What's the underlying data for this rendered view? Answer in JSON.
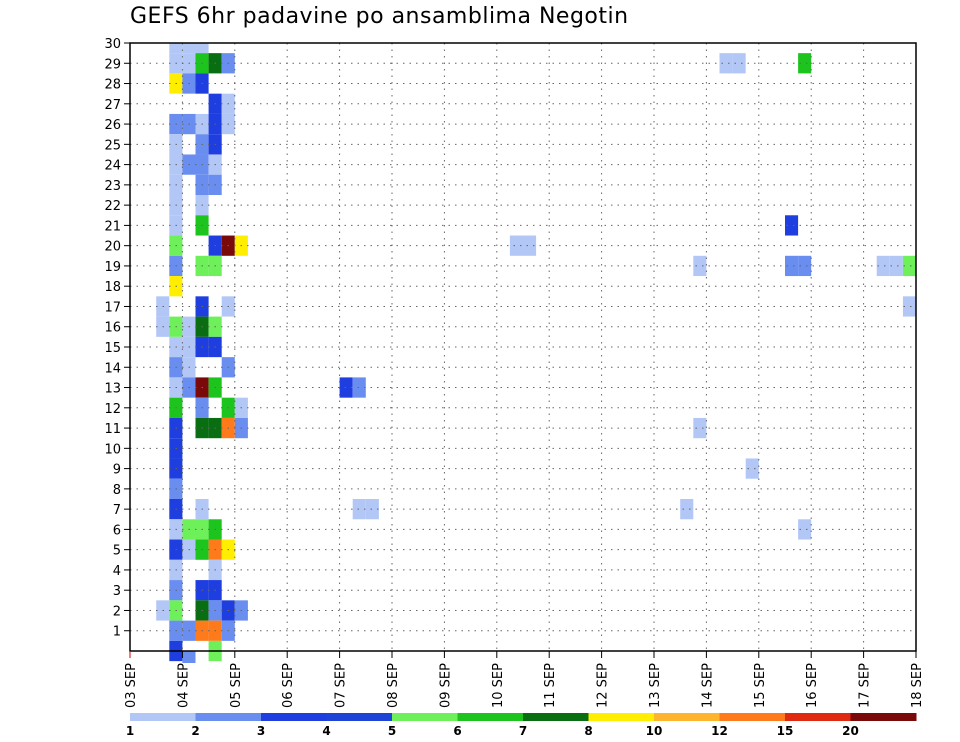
{
  "title": "GEFS 6hr padavine po ansamblima Negotin",
  "chart_data": {
    "type": "heatmap",
    "title": "GEFS 6hr padavine po ansamblima Negotin",
    "xlabel": "",
    "ylabel": "",
    "x_ticks": [
      "03 SEP",
      "04 SEP",
      "05 SEP",
      "06 SEP",
      "07 SEP",
      "08 SEP",
      "09 SEP",
      "10 SEP",
      "11 SEP",
      "12 SEP",
      "13 SEP",
      "14 SEP",
      "15 SEP",
      "16 SEP",
      "17 SEP",
      "18 SEP"
    ],
    "y_ticks": [
      1,
      2,
      3,
      4,
      5,
      6,
      7,
      8,
      9,
      10,
      11,
      12,
      13,
      14,
      15,
      16,
      17,
      18,
      19,
      20,
      21,
      22,
      23,
      24,
      25,
      26,
      27,
      28,
      29,
      30
    ],
    "xlim_days": [
      3,
      18
    ],
    "ylim": [
      0,
      30
    ],
    "step_hours": 6,
    "grid": true,
    "colorbar": {
      "labels": [
        "1",
        "2",
        "3",
        "4",
        "5",
        "6",
        "7",
        "8",
        "10",
        "12",
        "15",
        "20"
      ],
      "colors": [
        "#b3c7f7",
        "#6a8ef0",
        "#1f3ee0",
        "#1d44d6",
        "#6ef05a",
        "#1ec41e",
        "#096e12",
        "#ffee00",
        "#ffb42e",
        "#ff7a1a",
        "#e02a10",
        "#7a0a0a"
      ]
    },
    "cells": [
      [
        3.75,
        30,
        1
      ],
      [
        4.0,
        30,
        1
      ],
      [
        4.25,
        30,
        1
      ],
      [
        3.75,
        29,
        1
      ],
      [
        4.0,
        29,
        1
      ],
      [
        4.25,
        29,
        6
      ],
      [
        4.5,
        29,
        7
      ],
      [
        4.75,
        29,
        2
      ],
      [
        3.75,
        28,
        8
      ],
      [
        4.0,
        28,
        2
      ],
      [
        4.25,
        28,
        3
      ],
      [
        4.5,
        27,
        3
      ],
      [
        4.75,
        27,
        1
      ],
      [
        3.75,
        26,
        2
      ],
      [
        4.0,
        26,
        2
      ],
      [
        4.25,
        26,
        1
      ],
      [
        4.5,
        26,
        3
      ],
      [
        4.75,
        26,
        1
      ],
      [
        3.75,
        25,
        1
      ],
      [
        4.25,
        25,
        2
      ],
      [
        4.5,
        25,
        3
      ],
      [
        3.75,
        24,
        1
      ],
      [
        4.0,
        24,
        2
      ],
      [
        4.25,
        24,
        2
      ],
      [
        4.5,
        24,
        1
      ],
      [
        3.75,
        23,
        1
      ],
      [
        4.25,
        23,
        2
      ],
      [
        4.5,
        23,
        2
      ],
      [
        3.75,
        22,
        1
      ],
      [
        4.25,
        22,
        1
      ],
      [
        3.75,
        21,
        1
      ],
      [
        4.25,
        21,
        6
      ],
      [
        3.75,
        20,
        5
      ],
      [
        4.5,
        20,
        3
      ],
      [
        4.75,
        20,
        20
      ],
      [
        5.0,
        20,
        8
      ],
      [
        3.75,
        19,
        2
      ],
      [
        4.25,
        19,
        5
      ],
      [
        4.5,
        19,
        5
      ],
      [
        3.75,
        18,
        8
      ],
      [
        3.5,
        17,
        1
      ],
      [
        4.25,
        17,
        3
      ],
      [
        4.75,
        17,
        1
      ],
      [
        3.5,
        16,
        1
      ],
      [
        3.75,
        16,
        5
      ],
      [
        4.0,
        16,
        1
      ],
      [
        4.25,
        16,
        7
      ],
      [
        4.5,
        16,
        5
      ],
      [
        3.75,
        15,
        1
      ],
      [
        4.0,
        15,
        1
      ],
      [
        4.25,
        15,
        3
      ],
      [
        4.5,
        15,
        3
      ],
      [
        3.75,
        14,
        2
      ],
      [
        4.0,
        14,
        1
      ],
      [
        4.75,
        14,
        2
      ],
      [
        3.75,
        13,
        1
      ],
      [
        4.0,
        13,
        2
      ],
      [
        4.25,
        13,
        15
      ],
      [
        4.5,
        13,
        6
      ],
      [
        3.75,
        12,
        6
      ],
      [
        4.25,
        12,
        2
      ],
      [
        4.75,
        12,
        6
      ],
      [
        5.0,
        12,
        1
      ],
      [
        3.75,
        11,
        3
      ],
      [
        4.25,
        11,
        7
      ],
      [
        4.5,
        11,
        7
      ],
      [
        4.75,
        11,
        10
      ],
      [
        5.0,
        11,
        2
      ],
      [
        3.75,
        10,
        3
      ],
      [
        3.75,
        9,
        3
      ],
      [
        3.75,
        8,
        2
      ],
      [
        3.75,
        7,
        3
      ],
      [
        4.25,
        7,
        1
      ],
      [
        3.75,
        6,
        1
      ],
      [
        4.0,
        6,
        5
      ],
      [
        4.25,
        6,
        5
      ],
      [
        4.5,
        6,
        6
      ],
      [
        3.75,
        5,
        3
      ],
      [
        4.0,
        5,
        1
      ],
      [
        4.25,
        5,
        6
      ],
      [
        4.5,
        5,
        10
      ],
      [
        4.75,
        5,
        8
      ],
      [
        3.75,
        4,
        1
      ],
      [
        4.5,
        4,
        1
      ],
      [
        3.75,
        3,
        2
      ],
      [
        4.25,
        3,
        3
      ],
      [
        4.5,
        3,
        3
      ],
      [
        3.5,
        2,
        1
      ],
      [
        3.75,
        2,
        5
      ],
      [
        4.25,
        2,
        7
      ],
      [
        4.5,
        2,
        2
      ],
      [
        4.75,
        2,
        3
      ],
      [
        5.0,
        2,
        2
      ],
      [
        3.75,
        1,
        2
      ],
      [
        4.0,
        1,
        2
      ],
      [
        4.25,
        1,
        10
      ],
      [
        4.5,
        1,
        10
      ],
      [
        4.75,
        1,
        2
      ],
      [
        3.75,
        0,
        3
      ],
      [
        4.5,
        0,
        5
      ],
      [
        4.0,
        -0.5,
        2
      ],
      [
        7.0,
        13,
        3
      ],
      [
        7.25,
        13,
        2
      ],
      [
        7.25,
        7,
        1
      ],
      [
        7.5,
        7,
        1
      ],
      [
        10.25,
        20,
        1
      ],
      [
        10.5,
        20,
        1
      ],
      [
        14.25,
        29,
        1
      ],
      [
        14.5,
        29,
        1
      ],
      [
        15.75,
        29,
        6
      ],
      [
        15.5,
        21,
        3
      ],
      [
        13.75,
        19,
        1
      ],
      [
        15.5,
        19,
        2
      ],
      [
        15.75,
        19,
        2
      ],
      [
        17.25,
        19,
        1
      ],
      [
        17.5,
        19,
        1
      ],
      [
        17.75,
        19,
        5
      ],
      [
        17.75,
        17,
        1
      ],
      [
        13.75,
        11,
        1
      ],
      [
        14.75,
        9,
        1
      ],
      [
        13.5,
        7,
        1
      ],
      [
        15.75,
        6,
        1
      ]
    ]
  }
}
